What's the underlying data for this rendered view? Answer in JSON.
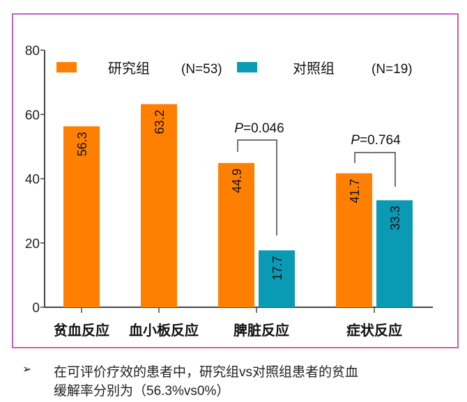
{
  "chart_data": {
    "type": "bar",
    "categories": [
      "贫血反应",
      "血小板反应",
      "脾脏反应",
      "症状反应"
    ],
    "series": [
      {
        "name": "研究组",
        "n_label": "(N=53)",
        "color": "#FF8000",
        "values": [
          56.3,
          63.2,
          44.9,
          41.7
        ]
      },
      {
        "name": "对照组",
        "n_label": "(N=19)",
        "color": "#0A9AB4",
        "values": [
          null,
          null,
          17.7,
          33.3
        ]
      }
    ],
    "ylim": [
      0,
      80
    ],
    "yticks": [
      0,
      20,
      40,
      60,
      80
    ],
    "legend": "top",
    "grid": false,
    "annotations": [
      {
        "category": "脾脏反应",
        "text": "=0.046",
        "prefix": "P"
      },
      {
        "category": "症状反应",
        "text": "=0.764",
        "prefix": "P"
      }
    ]
  },
  "notes": {
    "bullet": "➢",
    "line1": "在可评价疗效的患者中，研究组vs对照组患者的贫血",
    "line2": "缓解率分别为（56.3%vs0%）"
  }
}
